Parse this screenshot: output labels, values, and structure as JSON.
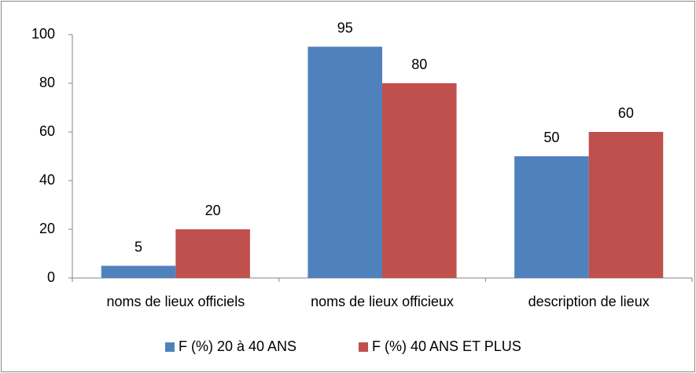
{
  "chart_data": {
    "type": "bar",
    "categories": [
      "noms de lieux officiels",
      "noms de lieux officieux",
      "description de lieux"
    ],
    "series": [
      {
        "name": "F (%) 20 à 40 ANS",
        "color": "#4f81bd",
        "values": [
          5,
          95,
          50
        ]
      },
      {
        "name": "F (%) 40 ANS ET PLUS",
        "color": "#c0504d",
        "values": [
          20,
          80,
          60
        ]
      }
    ],
    "ylim": [
      0,
      100
    ],
    "yticks": [
      0,
      20,
      40,
      60,
      80,
      100
    ],
    "grid": false,
    "legend": "bottom",
    "data_labels": true
  }
}
